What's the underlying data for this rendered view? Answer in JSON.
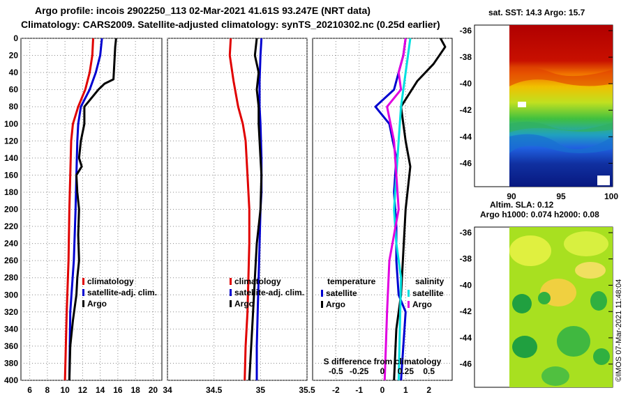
{
  "title_line1": "Argo profile: incois 2902250_113 02-Mar-2021 41.61S 93.247E (NRT data)",
  "title_line2": "Climatology: CARS2009. Satellite-adjusted climatology: synTS_20210302.nc (0.25d earlier)",
  "sst_title": "sat. SST: 14.3 Argo: 15.7",
  "sla_title1": "Altim. SLA: 0.12",
  "sla_title2": "Argo h1000: 0.074 h2000: 0.08",
  "credit": "©IMOS 07-Mar-2021 11:48:04",
  "colors": {
    "climatology": "#e00000",
    "satellite": "#0000d0",
    "argo": "#000000",
    "sat_salinity": "#00e0e0",
    "argo_salinity": "#e000e0"
  },
  "chart_data": [
    {
      "type": "line",
      "name": "temperature",
      "xlim": [
        5,
        21
      ],
      "ylim": [
        400,
        0
      ],
      "xticks": [
        6,
        8,
        10,
        12,
        14,
        16,
        18,
        20
      ],
      "yticks": [
        0,
        20,
        40,
        60,
        80,
        100,
        120,
        140,
        160,
        180,
        200,
        220,
        240,
        260,
        280,
        300,
        320,
        340,
        360,
        380,
        400
      ],
      "legend": [
        "climatology",
        "satellite-adj. clim.",
        "Argo"
      ],
      "series": [
        {
          "name": "climatology",
          "color": "#e00000",
          "x": [
            13.2,
            13.1,
            12.8,
            12.3,
            11.5,
            10.9,
            10.7,
            10.6,
            10.5,
            10.4,
            10.2,
            10.0
          ],
          "y": [
            0,
            20,
            40,
            60,
            80,
            100,
            120,
            160,
            200,
            260,
            320,
            400
          ]
        },
        {
          "name": "satellite-adj. clim.",
          "color": "#0000d0",
          "x": [
            14.2,
            14.0,
            13.5,
            12.8,
            11.8,
            11.5,
            11.4,
            11.3,
            11.2,
            11.0,
            10.6,
            10.5
          ],
          "y": [
            0,
            20,
            40,
            60,
            80,
            100,
            120,
            160,
            200,
            260,
            320,
            400
          ]
        },
        {
          "name": "Argo",
          "color": "#000000",
          "x": [
            15.8,
            15.7,
            15.6,
            15.5,
            14.5,
            13.8,
            12.2,
            12.2,
            11.8,
            11.6,
            11.9,
            11.3,
            11.4,
            11.6,
            11.5,
            11.6,
            11.4,
            11.3,
            10.9,
            10.6,
            10.5
          ],
          "y": [
            0,
            10,
            30,
            48,
            53,
            60,
            80,
            100,
            120,
            140,
            150,
            160,
            180,
            200,
            230,
            260,
            280,
            300,
            330,
            360,
            400
          ]
        }
      ]
    },
    {
      "type": "line",
      "name": "salinity",
      "xlim": [
        34,
        35.5
      ],
      "ylim": [
        400,
        0
      ],
      "xticks": [
        34,
        34.5,
        35,
        35.5
      ],
      "legend": [
        "climatology",
        "satellite-adj. clim.",
        "Argo"
      ],
      "series": [
        {
          "name": "climatology",
          "color": "#e00000",
          "x": [
            34.68,
            34.67,
            34.71,
            34.76,
            34.81,
            34.84,
            34.86,
            34.88,
            34.88,
            34.87,
            34.86,
            34.84,
            34.83
          ],
          "y": [
            0,
            20,
            50,
            80,
            100,
            120,
            160,
            200,
            240,
            280,
            320,
            360,
            400
          ]
        },
        {
          "name": "satellite-adj. clim.",
          "color": "#0000d0",
          "x": [
            35.01,
            35.0,
            34.99,
            34.99,
            35.0,
            35.01,
            35.01,
            35.0,
            34.99,
            34.98,
            34.97,
            34.96,
            34.96
          ],
          "y": [
            0,
            20,
            50,
            80,
            100,
            140,
            180,
            200,
            240,
            280,
            320,
            360,
            400
          ]
        },
        {
          "name": "Argo",
          "color": "#000000",
          "x": [
            34.96,
            34.94,
            34.98,
            34.96,
            34.98,
            34.98,
            34.99,
            35.0,
            35.01,
            35.0,
            34.98,
            34.96,
            34.94,
            34.92,
            34.9,
            34.88
          ],
          "y": [
            0,
            20,
            40,
            60,
            80,
            100,
            120,
            140,
            160,
            200,
            220,
            240,
            280,
            320,
            360,
            400
          ]
        }
      ]
    },
    {
      "type": "line",
      "name": "difference from climatology",
      "xlabel": "S difference from climatology",
      "xlim": [
        -3,
        3
      ],
      "ylim": [
        400,
        0
      ],
      "xticks": [
        -2,
        -1,
        0,
        1,
        2
      ],
      "xticks2": [
        -0.5,
        -0.25,
        0,
        0.25,
        0.5
      ],
      "legend_temperature": "temperature",
      "legend_salinity": "salinity",
      "legend_entries": [
        "satellite",
        "Argo",
        "satellite",
        "Argo"
      ],
      "series": [
        {
          "name": "temperature satellite",
          "color": "#0000d0",
          "x": [
            1.0,
            0.9,
            0.7,
            0.5,
            -0.3,
            0.3,
            0.6,
            0.5,
            0.6,
            0.6,
            0.7,
            1.0,
            0.8
          ],
          "y": [
            0,
            20,
            40,
            60,
            80,
            100,
            140,
            180,
            220,
            260,
            300,
            320,
            400
          ]
        },
        {
          "name": "temperature Argo",
          "color": "#000000",
          "x": [
            2.5,
            2.7,
            2.2,
            1.5,
            0.8,
            0.9,
            1.0,
            1.2,
            1.0,
            0.9,
            0.8,
            0.6,
            0.5
          ],
          "y": [
            0,
            10,
            30,
            50,
            80,
            100,
            120,
            150,
            200,
            250,
            300,
            340,
            400
          ]
        },
        {
          "name": "salinity satellite",
          "color": "#00e0e0",
          "x": [
            1.2,
            1.1,
            0.9,
            0.8,
            0.7,
            0.6,
            0.5,
            0.6,
            0.8,
            0.7
          ],
          "y": [
            0,
            20,
            60,
            80,
            120,
            160,
            200,
            240,
            280,
            400
          ]
        },
        {
          "name": "salinity Argo",
          "color": "#e000e0",
          "x": [
            1.0,
            0.9,
            0.7,
            0.8,
            0.2,
            0.5,
            0.6,
            0.7,
            0.3,
            0.2,
            0.1
          ],
          "y": [
            0,
            20,
            40,
            60,
            80,
            120,
            160,
            200,
            260,
            320,
            400
          ]
        }
      ]
    },
    {
      "type": "heatmap",
      "name": "satellite SST map",
      "xticks": [
        90,
        95,
        100
      ],
      "yticks": [
        -36,
        -38,
        -40,
        -42,
        -44,
        -46
      ]
    },
    {
      "type": "heatmap",
      "name": "altimeter SLA map",
      "yticks": [
        -36,
        -38,
        -40,
        -42,
        -44,
        -46
      ]
    }
  ]
}
